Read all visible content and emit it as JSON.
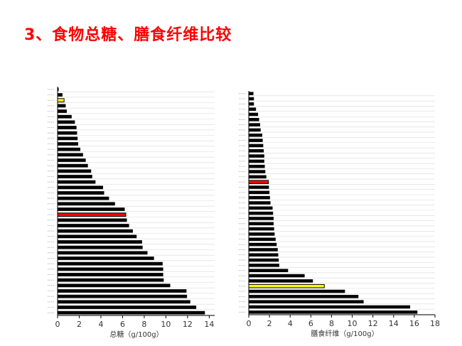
{
  "slide": {
    "title": "3、食物总糖、膳食纤维比较"
  },
  "chart_data": [
    {
      "type": "bar",
      "orientation": "horizontal",
      "xlabel": "总糖（g/100g）",
      "ylabel": "",
      "xlim": [
        0,
        14.5
      ],
      "xticks": [
        0,
        2,
        4,
        6,
        8,
        10,
        12,
        14
      ],
      "grid": true,
      "values": [
        0.1,
        0.45,
        0.6,
        0.75,
        0.85,
        1.3,
        1.6,
        1.75,
        1.8,
        1.85,
        1.9,
        2.1,
        2.35,
        2.6,
        2.8,
        3.1,
        3.2,
        3.5,
        4.2,
        4.3,
        4.75,
        5.3,
        6.2,
        6.3,
        6.4,
        6.6,
        6.95,
        7.3,
        7.8,
        7.85,
        8.3,
        8.9,
        9.7,
        9.75,
        9.75,
        9.8,
        10.4,
        11.9,
        11.95,
        12.25,
        12.8,
        13.6
      ],
      "highlight": [
        {
          "index": 2,
          "color": "#ffff00"
        },
        {
          "index": 23,
          "color": "#ff0000"
        }
      ]
    },
    {
      "type": "bar",
      "orientation": "horizontal",
      "xlabel": "膳食纤维（g/100g）",
      "ylabel": "",
      "xlim": [
        0,
        18
      ],
      "xticks": [
        0,
        2,
        4,
        6,
        8,
        10,
        12,
        14,
        16,
        18
      ],
      "grid": true,
      "values": [
        0.45,
        0.5,
        0.5,
        0.7,
        0.9,
        1.0,
        1.1,
        1.15,
        1.3,
        1.35,
        1.4,
        1.45,
        1.5,
        1.5,
        1.55,
        1.6,
        1.7,
        1.9,
        1.95,
        2.0,
        2.05,
        2.1,
        2.3,
        2.35,
        2.4,
        2.4,
        2.45,
        2.5,
        2.6,
        2.7,
        2.8,
        2.85,
        2.9,
        2.95,
        3.8,
        5.4,
        6.2,
        7.3,
        9.3,
        10.6,
        11.1,
        15.6,
        16.3
      ],
      "highlight": [
        {
          "index": 17,
          "color": "#ff0000"
        },
        {
          "index": 37,
          "color": "#ffff00"
        }
      ]
    }
  ]
}
